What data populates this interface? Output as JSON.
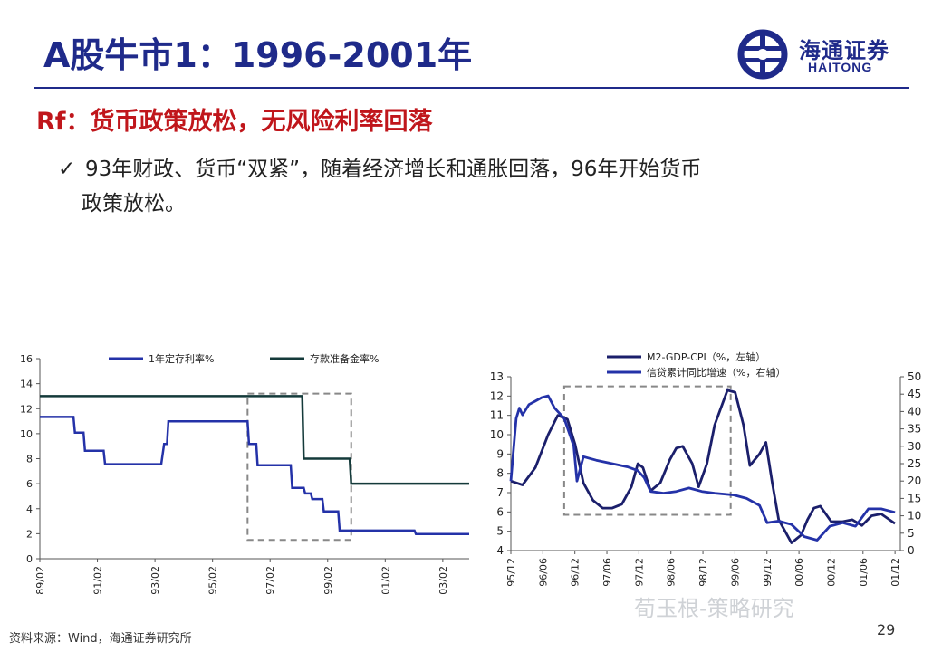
{
  "title": "A股牛市1：1996-2001年",
  "logo": {
    "cn": "海通证券",
    "en": "HAITONG",
    "icon": "haitong-logo-icon"
  },
  "subtitle": "Rf：货币政策放松，无风险利率回落",
  "bullet": {
    "check": "✓",
    "line1": "93年财政、货币“双紧”，随着经济增长和通胀回落，96年开始货币",
    "line2": "政策放松。"
  },
  "source": "资料来源：Wind，海通证券研究所",
  "page_number": "29",
  "watermark": "荀玉根-策略研究",
  "colors": {
    "navy": "#1f2a8a",
    "red": "#c0161b",
    "series_blue": "#2432a8",
    "series_dark": "#143a3a",
    "series_navy": "#1b1f6b",
    "dash": "#888888"
  },
  "chart_data": [
    {
      "type": "line",
      "title": "",
      "xlabel": "",
      "ylabel": "",
      "ylim": [
        0,
        16
      ],
      "yticks": [
        0,
        2,
        4,
        6,
        8,
        10,
        12,
        14,
        16
      ],
      "xlim": [
        1989.083,
        2004.0
      ],
      "xticks": [
        {
          "label": "89/02",
          "x": 1989.083
        },
        {
          "label": "91/02",
          "x": 1991.083
        },
        {
          "label": "93/02",
          "x": 1993.083
        },
        {
          "label": "95/02",
          "x": 1995.083
        },
        {
          "label": "97/02",
          "x": 1997.083
        },
        {
          "label": "99/02",
          "x": 1999.083
        },
        {
          "label": "01/02",
          "x": 2001.083
        },
        {
          "label": "03/02",
          "x": 2003.083
        }
      ],
      "legend": "top",
      "highlight_box": {
        "x": [
          1996.3,
          1999.9
        ],
        "y": [
          1.5,
          13.2
        ]
      },
      "series": [
        {
          "name": "1年定存利率%",
          "color": "#2432a8",
          "points": [
            [
              1989.083,
              11.34
            ],
            [
              1990.25,
              11.34
            ],
            [
              1990.3,
              10.08
            ],
            [
              1990.6,
              10.08
            ],
            [
              1990.65,
              8.64
            ],
            [
              1991.3,
              8.64
            ],
            [
              1991.35,
              7.56
            ],
            [
              1993.3,
              7.56
            ],
            [
              1993.4,
              9.18
            ],
            [
              1993.5,
              9.18
            ],
            [
              1993.55,
              10.98
            ],
            [
              1996.3,
              10.98
            ],
            [
              1996.35,
              9.18
            ],
            [
              1996.6,
              9.18
            ],
            [
              1996.65,
              7.47
            ],
            [
              1997.8,
              7.47
            ],
            [
              1997.85,
              5.67
            ],
            [
              1998.25,
              5.67
            ],
            [
              1998.3,
              5.22
            ],
            [
              1998.5,
              5.22
            ],
            [
              1998.55,
              4.77
            ],
            [
              1998.9,
              4.77
            ],
            [
              1998.95,
              3.78
            ],
            [
              1999.45,
              3.78
            ],
            [
              1999.5,
              2.25
            ],
            [
              2002.1,
              2.25
            ],
            [
              2002.15,
              1.98
            ],
            [
              2004.0,
              1.98
            ]
          ]
        },
        {
          "name": "存款准备金率%",
          "color": "#143a3a",
          "points": [
            [
              1989.083,
              13
            ],
            [
              1998.2,
              13
            ],
            [
              1998.25,
              8
            ],
            [
              1999.85,
              8
            ],
            [
              1999.9,
              6
            ],
            [
              2004.0,
              6
            ]
          ]
        }
      ]
    },
    {
      "type": "line",
      "title": "",
      "xlabel": "",
      "ylabel": "",
      "ylim_left": [
        4,
        13
      ],
      "yticks_left": [
        4,
        5,
        6,
        7,
        8,
        9,
        10,
        11,
        12,
        13
      ],
      "ylim_right": [
        0,
        50
      ],
      "yticks_right": [
        0,
        5,
        10,
        15,
        20,
        25,
        30,
        35,
        40,
        45,
        50
      ],
      "xlim": [
        1995.917,
        2002.0
      ],
      "xticks": [
        {
          "label": "95/12",
          "x": 1995.917
        },
        {
          "label": "96/06",
          "x": 1996.417
        },
        {
          "label": "96/12",
          "x": 1996.917
        },
        {
          "label": "97/06",
          "x": 1997.417
        },
        {
          "label": "97/12",
          "x": 1997.917
        },
        {
          "label": "98/06",
          "x": 1998.417
        },
        {
          "label": "98/12",
          "x": 1998.917
        },
        {
          "label": "99/06",
          "x": 1999.417
        },
        {
          "label": "99/12",
          "x": 1999.917
        },
        {
          "label": "00/06",
          "x": 2000.417
        },
        {
          "label": "00/12",
          "x": 2000.917
        },
        {
          "label": "01/06",
          "x": 2001.417
        },
        {
          "label": "01/12",
          "x": 2001.917
        }
      ],
      "legend": "top-left",
      "highlight_box": {
        "x": [
          1996.75,
          1999.35
        ],
        "y": [
          5.85,
          12.5
        ]
      },
      "series": [
        {
          "name": "M2-GDP-CPI（%，左轴）",
          "axis": "left",
          "color": "#1b1f6b",
          "points": [
            [
              1995.917,
              7.6
            ],
            [
              1996.1,
              7.4
            ],
            [
              1996.3,
              8.3
            ],
            [
              1996.5,
              10.0
            ],
            [
              1996.65,
              11.0
            ],
            [
              1996.8,
              10.8
            ],
            [
              1996.92,
              9.5
            ],
            [
              1997.05,
              7.5
            ],
            [
              1997.2,
              6.6
            ],
            [
              1997.35,
              6.2
            ],
            [
              1997.5,
              6.2
            ],
            [
              1997.65,
              6.4
            ],
            [
              1997.8,
              7.3
            ],
            [
              1997.9,
              8.5
            ],
            [
              1997.98,
              8.3
            ],
            [
              1998.1,
              7.1
            ],
            [
              1998.25,
              7.5
            ],
            [
              1998.4,
              8.7
            ],
            [
              1998.5,
              9.3
            ],
            [
              1998.6,
              9.4
            ],
            [
              1998.75,
              8.5
            ],
            [
              1998.85,
              7.3
            ],
            [
              1998.98,
              8.5
            ],
            [
              1999.1,
              10.5
            ],
            [
              1999.3,
              12.3
            ],
            [
              1999.42,
              12.2
            ],
            [
              1999.55,
              10.5
            ],
            [
              1999.65,
              8.4
            ],
            [
              1999.8,
              9.0
            ],
            [
              1999.9,
              9.6
            ],
            [
              2000.0,
              7.5
            ],
            [
              2000.1,
              5.6
            ],
            [
              2000.2,
              5.0
            ],
            [
              2000.3,
              4.4
            ],
            [
              2000.45,
              4.8
            ],
            [
              2000.55,
              5.6
            ],
            [
              2000.65,
              6.2
            ],
            [
              2000.75,
              6.3
            ],
            [
              2000.92,
              5.5
            ],
            [
              2001.1,
              5.5
            ],
            [
              2001.25,
              5.6
            ],
            [
              2001.4,
              5.3
            ],
            [
              2001.55,
              5.8
            ],
            [
              2001.7,
              5.9
            ],
            [
              2001.917,
              5.4
            ]
          ]
        },
        {
          "name": "信贷累计同比增速（%，右轴）",
          "axis": "right",
          "color": "#2432a8",
          "points": [
            [
              1995.917,
              20
            ],
            [
              1996.0,
              38
            ],
            [
              1996.05,
              41
            ],
            [
              1996.1,
              39
            ],
            [
              1996.2,
              42
            ],
            [
              1996.3,
              43
            ],
            [
              1996.4,
              44
            ],
            [
              1996.5,
              44.5
            ],
            [
              1996.6,
              41
            ],
            [
              1996.75,
              38
            ],
            [
              1996.9,
              30
            ],
            [
              1996.95,
              20
            ],
            [
              1997.05,
              27
            ],
            [
              1997.25,
              26
            ],
            [
              1997.5,
              25
            ],
            [
              1997.75,
              24
            ],
            [
              1997.9,
              23
            ],
            [
              1998.0,
              21
            ],
            [
              1998.1,
              17
            ],
            [
              1998.3,
              16.5
            ],
            [
              1998.5,
              17
            ],
            [
              1998.7,
              18
            ],
            [
              1998.9,
              17
            ],
            [
              1999.1,
              16.5
            ],
            [
              1999.4,
              16
            ],
            [
              1999.6,
              15
            ],
            [
              1999.8,
              13
            ],
            [
              1999.92,
              8
            ],
            [
              2000.1,
              8.5
            ],
            [
              2000.3,
              7.5
            ],
            [
              2000.5,
              4
            ],
            [
              2000.7,
              3
            ],
            [
              2000.9,
              7
            ],
            [
              2001.1,
              8
            ],
            [
              2001.3,
              7
            ],
            [
              2001.5,
              12
            ],
            [
              2001.7,
              12
            ],
            [
              2001.917,
              11
            ]
          ]
        }
      ]
    }
  ]
}
